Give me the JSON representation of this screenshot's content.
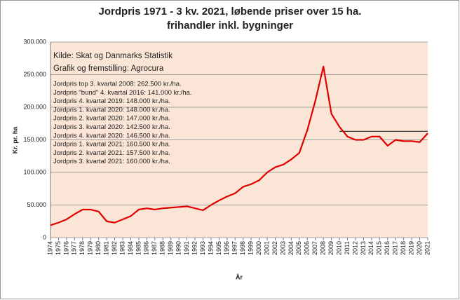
{
  "chart_data": {
    "type": "line",
    "title": [
      "Jordpris 1971 - 3 kv. 2021, løbende priser over 15 ha.",
      "frihandler inkl. bygninger"
    ],
    "y_label": "Kr. pr. ha",
    "x_label": "År",
    "annotations_main": [
      "Kilde: Skat og Danmarks Statistik",
      "Grafik og fremstilling: Agrocura"
    ],
    "annotations": [
      "Jordpris top 3. kvartal 2008: 262.500 kr./ha.",
      "Jordpris \"bund\" 4. kvartal 2016: 141.000 kr./ha.",
      "Jordpris 4. kvartal 2019: 148.000 kr./ha.",
      "Jordpris 1. kvartal 2020: 148.000 kr./ha.",
      "Jordpris 2. kvartal 2020: 147.000 kr./ha.",
      "Jordpris 3. kvartal 2020: 142.500 kr./ha.",
      "Jordpris 4. kvartal 2020: 146.500 kr./ha.",
      "Jordpris 1. kvartal 2021: 160.500 kr./ha.",
      "Jordpris 2. kvartal 2021: 157.500 kr./ha.",
      "Jordpris 3. kvartal 2021: 160.000 kr./ha."
    ],
    "categories": [
      "1974",
      "1975",
      "1976",
      "1977",
      "1978",
      "1979",
      "1980",
      "1981",
      "1982",
      "1983",
      "1984",
      "1985",
      "1986",
      "1987",
      "1988",
      "1989",
      "1990",
      "1991",
      "1992",
      "1993",
      "1994",
      "1995",
      "1996",
      "1997",
      "1998",
      "1999",
      "2000",
      "2001",
      "2002",
      "2003",
      "2004",
      "2005",
      "2006",
      "2007",
      "2008",
      "2009",
      "2010",
      "2011",
      "2012",
      "2013",
      "2014",
      "2015",
      "2016",
      "2017",
      "2018",
      "2019",
      "2020",
      "2021"
    ],
    "series": [
      {
        "name": "Jordpris",
        "color": "#e00000",
        "values": [
          19000,
          23000,
          28000,
          36000,
          43000,
          43000,
          40000,
          25000,
          23000,
          28000,
          33000,
          43000,
          45000,
          43000,
          45000,
          46000,
          47000,
          48000,
          45000,
          42000,
          50000,
          57000,
          63000,
          68000,
          78000,
          82000,
          88000,
          100000,
          108000,
          112000,
          120000,
          130000,
          165000,
          210000,
          262500,
          190000,
          170000,
          155000,
          150000,
          150000,
          155000,
          155000,
          141000,
          150000,
          148000,
          148000,
          146500,
          160000
        ]
      }
    ],
    "reference_line": {
      "value": 163000,
      "x": [
        "2010",
        "2021"
      ],
      "color": "#333333"
    },
    "ylim": [
      0,
      300000
    ],
    "yticks": [
      {
        "value": 0,
        "label": "0"
      },
      {
        "value": 50000,
        "label": "50.000"
      },
      {
        "value": 100000,
        "label": "100.000"
      },
      {
        "value": 150000,
        "label": "150.000"
      },
      {
        "value": 200000,
        "label": "200.000"
      },
      {
        "value": 250000,
        "label": "250.000"
      },
      {
        "value": 300000,
        "label": "300.000"
      }
    ],
    "grid": true,
    "plot_background": "#fbe5d6"
  }
}
